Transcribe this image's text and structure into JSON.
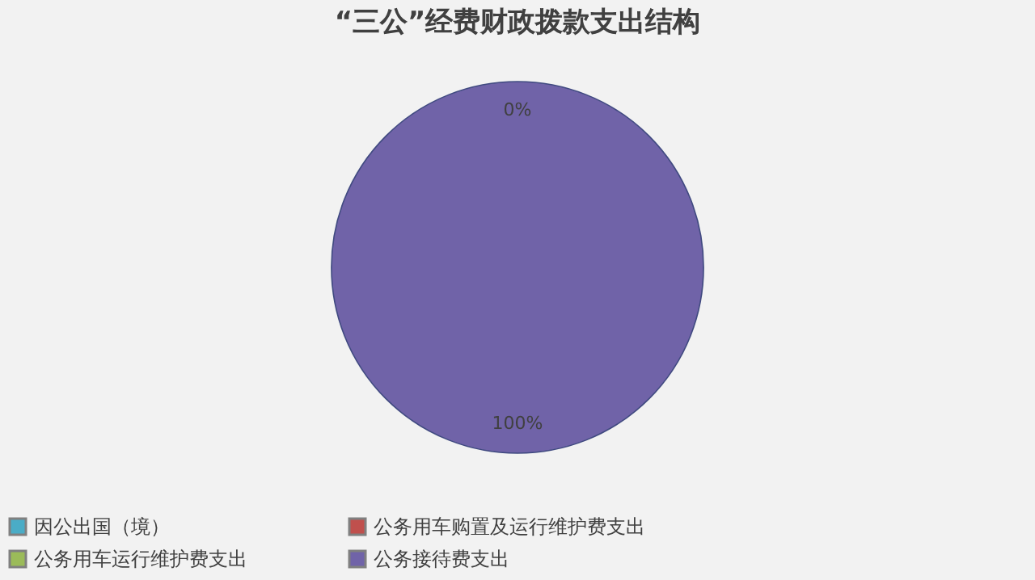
{
  "chart_data": {
    "type": "pie",
    "title": "“三公”经费财政拨款支出结构",
    "categories": [
      "因公出国（境）",
      "公务用车购置及运行维护费支出",
      "公务用车运行维护费支出",
      "公务接待费支出"
    ],
    "values": [
      0,
      0,
      0,
      100
    ],
    "colors": [
      "#4aacc6",
      "#c0504d",
      "#9bbb59",
      "#7063a8"
    ],
    "value_labels": [
      "0%",
      null,
      null,
      "100%"
    ],
    "legend": "bottom"
  }
}
